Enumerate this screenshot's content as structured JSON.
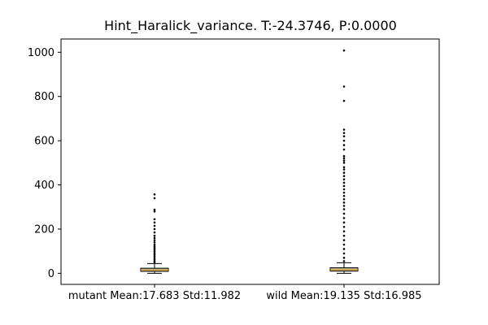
{
  "chart_data": {
    "type": "box",
    "title": "Hint_Haralick_variance. T:-24.3746, P:0.0000",
    "xlabel": "",
    "ylabel": "",
    "ylim": [
      -50,
      1060
    ],
    "yticks": [
      0,
      200,
      400,
      600,
      800,
      1000
    ],
    "ytick_labels": [
      "0",
      "200",
      "400",
      "600",
      "800",
      "1000"
    ],
    "grid": false,
    "categories": [
      "mutant Mean:17.683 Std:11.982",
      "wild Mean:19.135 Std:16.985"
    ],
    "boxes": [
      {
        "category": "mutant Mean:17.683 Std:11.982",
        "whisker_low": 0,
        "q1": 9,
        "median": 15,
        "q3": 23,
        "whisker_high": 44,
        "outliers": [
          50,
          55,
          62,
          70,
          78,
          85,
          92,
          100,
          108,
          115,
          122,
          130,
          140,
          150,
          160,
          170,
          185,
          200,
          215,
          230,
          245,
          280,
          288,
          340,
          357
        ]
      },
      {
        "category": "wild Mean:19.135 Std:16.985",
        "whisker_low": 0,
        "q1": 10,
        "median": 16,
        "q3": 25,
        "whisker_high": 48,
        "outliers": [
          55,
          70,
          90,
          110,
          130,
          150,
          170,
          190,
          210,
          230,
          250,
          270,
          290,
          305,
          320,
          335,
          350,
          365,
          380,
          395,
          410,
          425,
          440,
          455,
          470,
          480,
          500,
          510,
          520,
          530,
          560,
          580,
          600,
          620,
          635,
          650,
          780,
          845,
          1008
        ]
      }
    ],
    "colors": {
      "box_edge": "#000000",
      "box_fill": "#b5b38a",
      "median_line": "#e8a531",
      "outlier": "#000000"
    }
  }
}
